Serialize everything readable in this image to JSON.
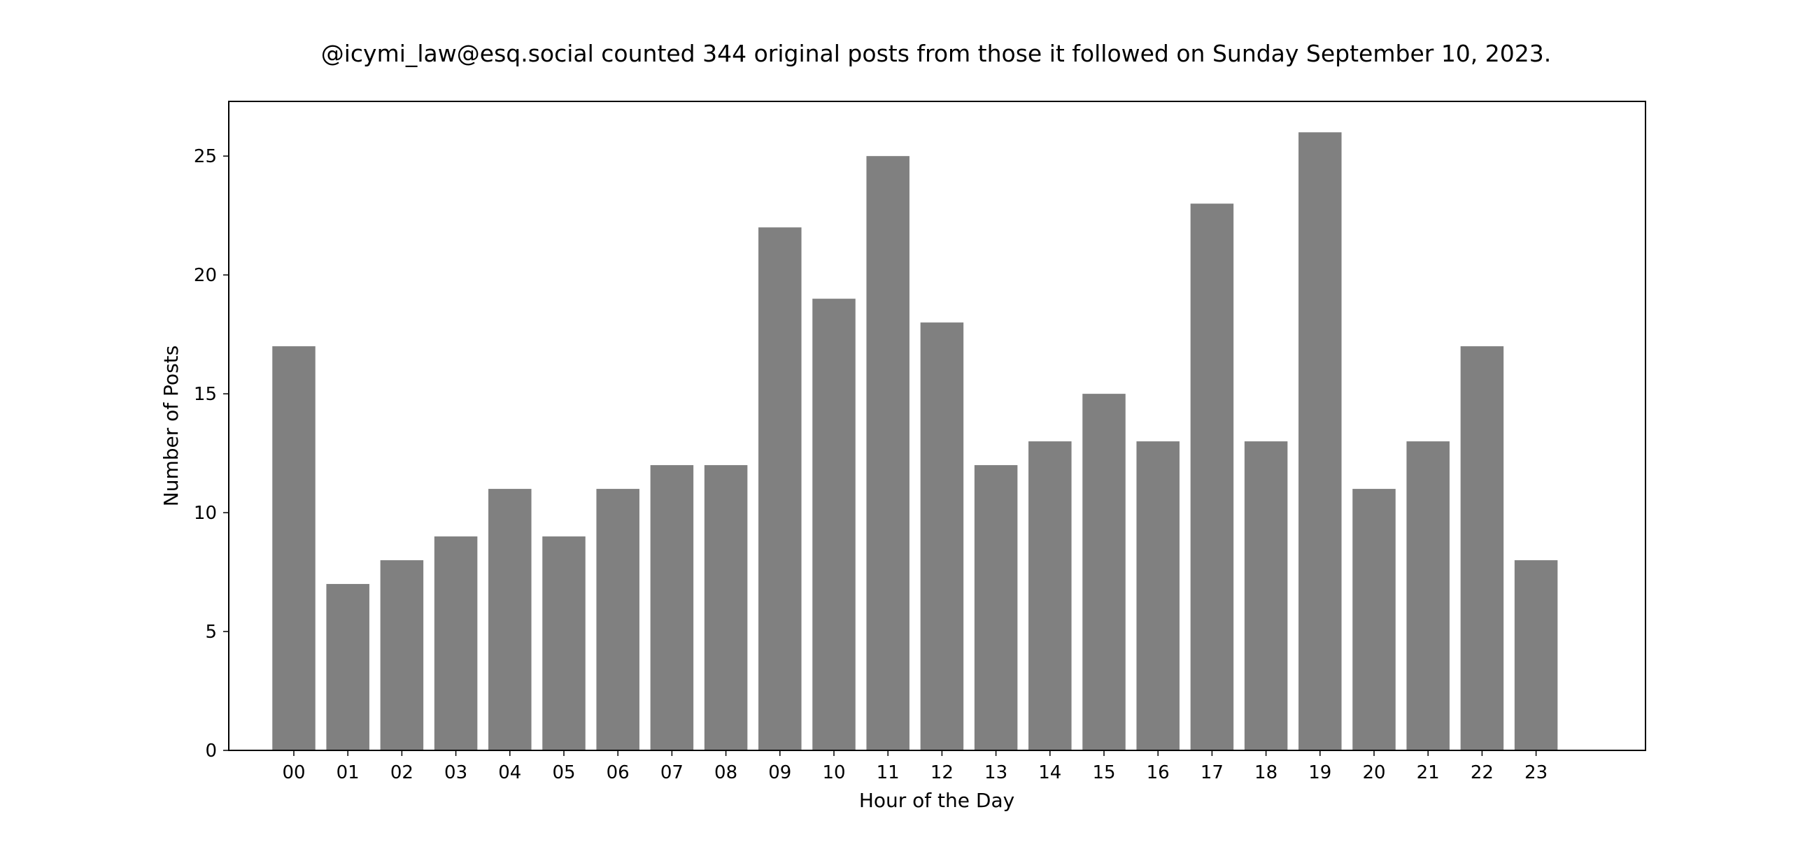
{
  "chart_data": {
    "type": "bar",
    "title": "@icymi_law@esq.social counted 344 original posts from those it followed on Sunday September 10, 2023.",
    "xlabel": "Hour of the Day",
    "ylabel": "Number of Posts",
    "categories": [
      "00",
      "01",
      "02",
      "03",
      "04",
      "05",
      "06",
      "07",
      "08",
      "09",
      "10",
      "11",
      "12",
      "13",
      "14",
      "15",
      "16",
      "17",
      "18",
      "19",
      "20",
      "21",
      "22",
      "23"
    ],
    "values": [
      17,
      7,
      8,
      9,
      11,
      9,
      11,
      12,
      12,
      22,
      19,
      25,
      18,
      12,
      13,
      15,
      13,
      23,
      13,
      26,
      11,
      13,
      17,
      8
    ],
    "ylim": [
      0,
      27.3
    ],
    "yticks": [
      0,
      5,
      10,
      15,
      20,
      25
    ],
    "bar_color": "#808080",
    "grid": false,
    "legend": "none"
  }
}
